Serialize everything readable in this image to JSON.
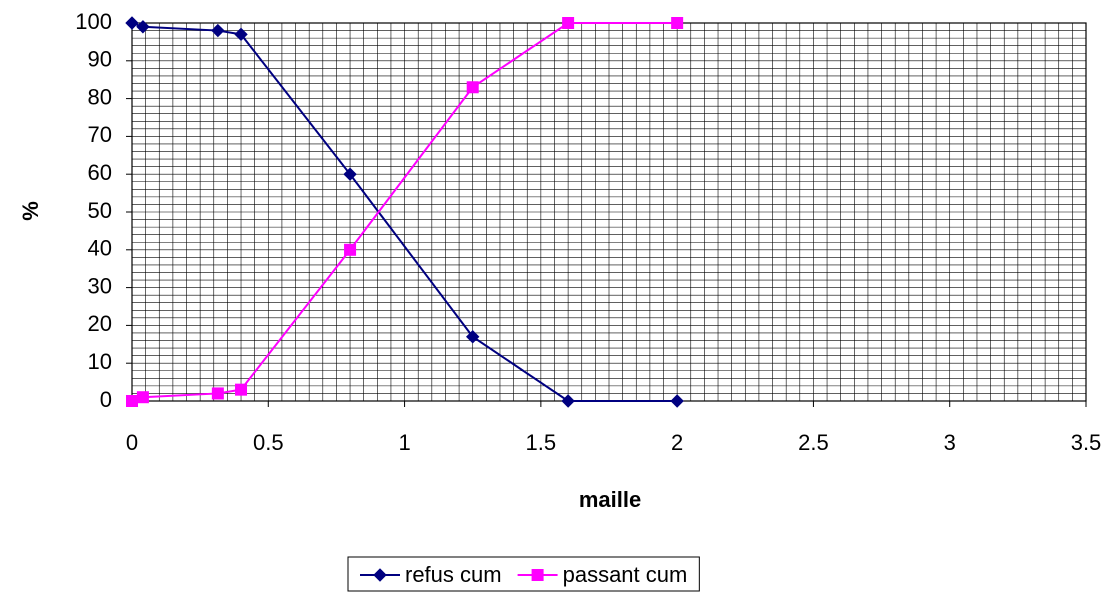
{
  "chart_data": {
    "type": "line",
    "xlabel": "maille",
    "ylabel": "%",
    "x": [
      0,
      0.04,
      0.315,
      0.4,
      0.8,
      1.25,
      1.6,
      2
    ],
    "series": [
      {
        "name": "refus cum",
        "color": "#000080",
        "marker": "diamond",
        "values": [
          100,
          99,
          98,
          97,
          60,
          17,
          0,
          0
        ]
      },
      {
        "name": "passant cum",
        "color": "#ff00ff",
        "marker": "square",
        "values": [
          0,
          1,
          2,
          3,
          40,
          83,
          100,
          100
        ]
      }
    ],
    "xlim": [
      0,
      3.5
    ],
    "xticks": [
      0,
      0.5,
      1,
      1.5,
      2,
      2.5,
      3,
      3.5
    ],
    "ylim": [
      0,
      100
    ],
    "yticks": [
      0,
      10,
      20,
      30,
      40,
      50,
      60,
      70,
      80,
      90,
      100
    ],
    "grid": true,
    "x_minor_step": 0.05,
    "y_minor_step": 2,
    "legend": "bottom"
  }
}
